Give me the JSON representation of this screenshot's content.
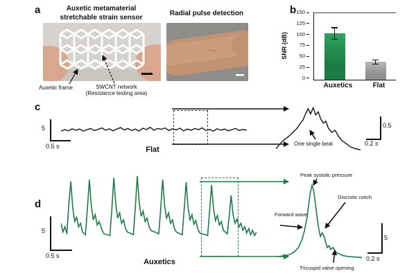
{
  "panel_a": {
    "letter": "a",
    "left_title_line1": "Auxetic metamaterial",
    "left_title_line2": "stretchable strain sensor",
    "right_title": "Radial pulse detection",
    "auxetic_frame_label": "Auxetic frame",
    "swcnt_label_line1": "SWCNT network",
    "swcnt_label_line2": "(Resistance testing area)"
  },
  "panel_b": {
    "letter": "b"
  },
  "panel_c": {
    "letter": "c",
    "amp_scale": "5",
    "time_scale": "0.5 s",
    "label": "Flat",
    "inset_label": "One single beat",
    "inset_amp_scale": "0.5",
    "inset_time_scale": "0.2 s"
  },
  "panel_d": {
    "letter": "d",
    "amp_scale": "5",
    "time_scale": "0.5 s",
    "label": "Auxetics",
    "inset_amp_scale": "5",
    "inset_time_scale": "0.2 s",
    "ann_peak": "Peak systolic pressure",
    "ann_notch": "Discrotic notch",
    "ann_forward": "Forward wave",
    "ann_tricuspid": "Tricuspid valve opening"
  },
  "chart_data": [
    {
      "type": "bar",
      "title": "",
      "categories": [
        "Auxetics",
        "Flat"
      ],
      "values": [
        104,
        40
      ],
      "errors": [
        14,
        6
      ],
      "ylabel": "SNR (dB)",
      "ylim": [
        0,
        150
      ],
      "yticks": [
        0,
        25,
        50,
        75,
        100,
        125,
        150
      ],
      "colors": [
        "#1c7a44",
        "#8f8f8f"
      ],
      "colors_light": [
        "#2da45c",
        "#b8b8b8"
      ],
      "grid": false,
      "legend": "none"
    },
    {
      "type": "line",
      "name": "flat-sensor-signal",
      "color": "#111111",
      "y_scale_bar": "5",
      "x_scale_bar": "0.5 s",
      "points": [
        [
          0,
          55
        ],
        [
          2,
          50
        ],
        [
          4,
          54
        ],
        [
          6,
          47
        ],
        [
          8,
          52
        ],
        [
          10,
          48
        ],
        [
          12,
          55
        ],
        [
          14,
          50
        ],
        [
          16,
          46
        ],
        [
          18,
          53
        ],
        [
          20,
          49
        ],
        [
          22,
          44
        ],
        [
          24,
          52
        ],
        [
          26,
          47
        ],
        [
          28,
          54
        ],
        [
          30,
          48
        ],
        [
          32,
          43
        ],
        [
          34,
          51
        ],
        [
          36,
          46
        ],
        [
          38,
          53
        ],
        [
          40,
          48
        ],
        [
          42,
          55
        ],
        [
          44,
          45
        ],
        [
          46,
          50
        ],
        [
          48,
          42
        ],
        [
          50,
          52
        ],
        [
          52,
          46
        ],
        [
          54,
          49
        ],
        [
          56,
          44
        ],
        [
          58,
          53
        ],
        [
          60,
          47
        ],
        [
          62,
          51
        ],
        [
          64,
          45
        ],
        [
          66,
          54
        ],
        [
          68,
          48
        ],
        [
          70,
          52
        ],
        [
          72,
          46
        ],
        [
          74,
          50
        ],
        [
          76,
          44
        ],
        [
          78,
          53
        ],
        [
          80,
          49
        ],
        [
          82,
          55
        ],
        [
          84,
          47
        ],
        [
          86,
          52
        ],
        [
          88,
          48
        ],
        [
          90,
          54
        ],
        [
          92,
          50
        ],
        [
          94,
          46
        ],
        [
          96,
          53
        ],
        [
          98,
          49
        ],
        [
          100,
          52
        ]
      ]
    },
    {
      "type": "line",
      "name": "flat-single-beat-inset",
      "color": "#111111",
      "annotation": "One single beat",
      "y_scale_bar": "0.5",
      "x_scale_bar": "0.2 s",
      "points": [
        [
          0,
          90
        ],
        [
          5,
          80
        ],
        [
          10,
          72
        ],
        [
          15,
          66
        ],
        [
          20,
          58
        ],
        [
          25,
          50
        ],
        [
          28,
          42
        ],
        [
          32,
          34
        ],
        [
          35,
          22
        ],
        [
          38,
          12
        ],
        [
          41,
          22
        ],
        [
          44,
          10
        ],
        [
          47,
          24
        ],
        [
          50,
          18
        ],
        [
          53,
          32
        ],
        [
          56,
          40
        ],
        [
          59,
          36
        ],
        [
          62,
          50
        ],
        [
          66,
          58
        ],
        [
          70,
          54
        ],
        [
          74,
          66
        ],
        [
          78,
          74
        ],
        [
          83,
          80
        ],
        [
          88,
          86
        ],
        [
          94,
          90
        ],
        [
          100,
          92
        ]
      ]
    },
    {
      "type": "line",
      "name": "auxetics-pulse-signal",
      "color": "#1c7a44",
      "y_scale_bar": "5",
      "x_scale_bar": "0.5 s",
      "points": [
        [
          0,
          62
        ],
        [
          1,
          72
        ],
        [
          2,
          66
        ],
        [
          3,
          74
        ],
        [
          4,
          40
        ],
        [
          5,
          14
        ],
        [
          6,
          44
        ],
        [
          7,
          60
        ],
        [
          8,
          55
        ],
        [
          9,
          66
        ],
        [
          10,
          62
        ],
        [
          11,
          72
        ],
        [
          12.5,
          75
        ],
        [
          13.5,
          45
        ],
        [
          14.5,
          12
        ],
        [
          15.5,
          42
        ],
        [
          16.5,
          58
        ],
        [
          17.5,
          52
        ],
        [
          18.5,
          64
        ],
        [
          19.5,
          60
        ],
        [
          21,
          70
        ],
        [
          22,
          74
        ],
        [
          25,
          76
        ],
        [
          26,
          46
        ],
        [
          27,
          10
        ],
        [
          28,
          40
        ],
        [
          29,
          56
        ],
        [
          30,
          50
        ],
        [
          31,
          62
        ],
        [
          32,
          58
        ],
        [
          33,
          68
        ],
        [
          34,
          72
        ],
        [
          37,
          75
        ],
        [
          38,
          44
        ],
        [
          39,
          8
        ],
        [
          40,
          38
        ],
        [
          41,
          54
        ],
        [
          42,
          48
        ],
        [
          43,
          60
        ],
        [
          44,
          56
        ],
        [
          45,
          66
        ],
        [
          46,
          70
        ],
        [
          50,
          74
        ],
        [
          51,
          45
        ],
        [
          52,
          12
        ],
        [
          53,
          42
        ],
        [
          54,
          56
        ],
        [
          55,
          50
        ],
        [
          56,
          62
        ],
        [
          57,
          58
        ],
        [
          58,
          68
        ],
        [
          59,
          72
        ],
        [
          62,
          75
        ],
        [
          63,
          46
        ],
        [
          64,
          15
        ],
        [
          65,
          44
        ],
        [
          66,
          58
        ],
        [
          67,
          52
        ],
        [
          68,
          63
        ],
        [
          69,
          59
        ],
        [
          70,
          69
        ],
        [
          71,
          73
        ],
        [
          75,
          76
        ],
        [
          76,
          48
        ],
        [
          77,
          18
        ],
        [
          78,
          45
        ],
        [
          79,
          59
        ],
        [
          80,
          53
        ],
        [
          81,
          64
        ],
        [
          82,
          60
        ],
        [
          83,
          70
        ],
        [
          85,
          74
        ],
        [
          86,
          55
        ],
        [
          87,
          30
        ],
        [
          88,
          52
        ],
        [
          89,
          62
        ],
        [
          90,
          57
        ],
        [
          91,
          66
        ],
        [
          92,
          62
        ],
        [
          93,
          70
        ],
        [
          94,
          66
        ],
        [
          95,
          73
        ],
        [
          96,
          68
        ],
        [
          97,
          75
        ],
        [
          98,
          70
        ],
        [
          99,
          76
        ],
        [
          100,
          72
        ]
      ]
    },
    {
      "type": "line",
      "name": "auxetics-single-pulse-inset",
      "color": "#1c7a44",
      "annotations": [
        "Peak systolic pressure",
        "Discrotic notch",
        "Forward wave",
        "Tricuspid valve opening"
      ],
      "y_scale_bar": "5",
      "x_scale_bar": "0.2 s",
      "points": [
        [
          0,
          88
        ],
        [
          8,
          87
        ],
        [
          14,
          86
        ],
        [
          20,
          83
        ],
        [
          25,
          78
        ],
        [
          29,
          70
        ],
        [
          32,
          60
        ],
        [
          35,
          46
        ],
        [
          37,
          32
        ],
        [
          39,
          18
        ],
        [
          41,
          10
        ],
        [
          43,
          16
        ],
        [
          45,
          30
        ],
        [
          47,
          45
        ],
        [
          49,
          58
        ],
        [
          51,
          66
        ],
        [
          53,
          62
        ],
        [
          55,
          65
        ],
        [
          57,
          72
        ],
        [
          59,
          78
        ],
        [
          61,
          76
        ],
        [
          63,
          80
        ],
        [
          66,
          78
        ],
        [
          69,
          83
        ],
        [
          73,
          85
        ],
        [
          78,
          87
        ],
        [
          85,
          88
        ],
        [
          100,
          89
        ]
      ]
    }
  ]
}
